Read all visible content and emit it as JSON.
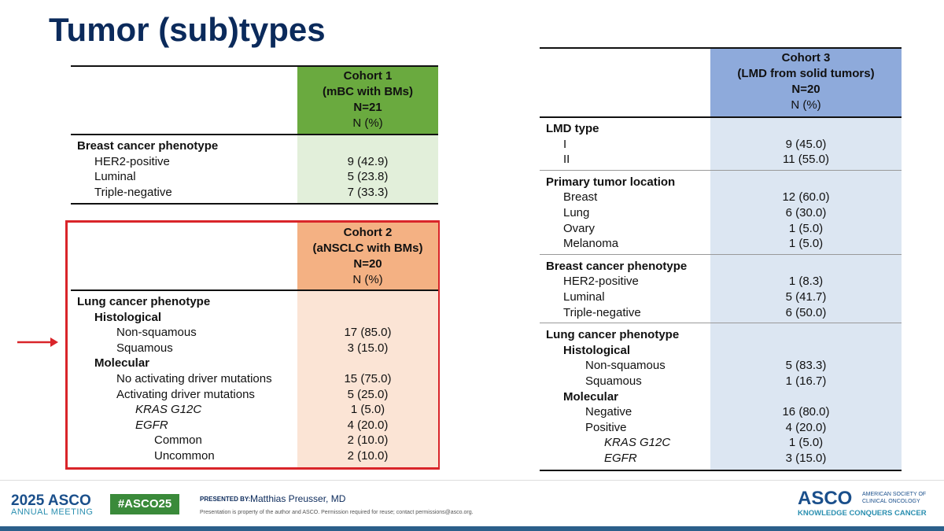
{
  "title": "Tumor (sub)types",
  "cohort1": {
    "header": [
      "Cohort 1",
      "(mBC with BMs)",
      "N=21",
      "N (%)"
    ],
    "sections": [
      {
        "label": "Breast cancer phenotype",
        "children": [
          {
            "label": "HER2-positive",
            "value": "9 (42.9)"
          },
          {
            "label": "Luminal",
            "value": "5 (23.8)"
          },
          {
            "label": "Triple-negative",
            "value": "7 (33.3)"
          }
        ]
      }
    ]
  },
  "cohort2": {
    "header": [
      "Cohort 2",
      "(aNSCLC with BMs)",
      "N=20",
      "N (%)"
    ],
    "sections": [
      {
        "label": "Lung cancer phenotype",
        "children": [
          {
            "label": "Histological",
            "children": [
              {
                "label": "Non-squamous",
                "value": "17 (85.0)"
              },
              {
                "label": "Squamous",
                "value": "3 (15.0)"
              }
            ]
          },
          {
            "label": "Molecular",
            "children": [
              {
                "label": "No activating driver mutations",
                "value": "15 (75.0)"
              },
              {
                "label": "Activating driver mutations",
                "value": "5 (25.0)",
                "children": [
                  {
                    "label": "KRAS G12C",
                    "value": "1 (5.0)"
                  },
                  {
                    "label": "EGFR",
                    "value": "4 (20.0)",
                    "children": [
                      {
                        "label": "Common",
                        "value": "2 (10.0)"
                      },
                      {
                        "label": "Uncommon",
                        "value": "2 (10.0)"
                      }
                    ]
                  }
                ]
              }
            ]
          }
        ]
      }
    ]
  },
  "cohort3": {
    "header": [
      "Cohort 3",
      "(LMD from solid tumors)",
      "N=20",
      "N (%)"
    ],
    "sections": [
      {
        "label": "LMD type",
        "children": [
          {
            "label": "I",
            "value": "9 (45.0)"
          },
          {
            "label": "II",
            "value": "11 (55.0)"
          }
        ]
      },
      {
        "label": "Primary tumor location",
        "children": [
          {
            "label": "Breast",
            "value": "12 (60.0)"
          },
          {
            "label": "Lung",
            "value": "6 (30.0)"
          },
          {
            "label": "Ovary",
            "value": "1 (5.0)"
          },
          {
            "label": "Melanoma",
            "value": "1 (5.0)"
          }
        ]
      },
      {
        "label": "Breast cancer phenotype",
        "children": [
          {
            "label": "HER2-positive",
            "value": "1 (8.3)"
          },
          {
            "label": "Luminal",
            "value": "5 (41.7)"
          },
          {
            "label": "Triple-negative",
            "value": "6 (50.0)"
          }
        ]
      },
      {
        "label": "Lung cancer phenotype",
        "children": [
          {
            "label": "Histological",
            "children": [
              {
                "label": "Non-squamous",
                "value": "5 (83.3)"
              },
              {
                "label": "Squamous",
                "value": "1 (16.7)"
              }
            ]
          },
          {
            "label": "Molecular",
            "children": [
              {
                "label": "Negative",
                "value": "16 (80.0)"
              },
              {
                "label": "Positive",
                "value": "4 (20.0)",
                "children": [
                  {
                    "label": "KRAS G12C",
                    "value": "1 (5.0)"
                  },
                  {
                    "label": "EGFR",
                    "value": "3 (15.0)"
                  }
                ]
              }
            ]
          }
        ]
      }
    ]
  },
  "footer": {
    "meeting_year": "2025 ASCO",
    "meeting": "ANNUAL MEETING",
    "hashtag": "#ASCO25",
    "presented_by": "PRESENTED BY:",
    "presenter": "Matthias Preusser, MD",
    "disclaimer": "Presentation is property of the author and ASCO. Permission required for reuse; contact permissions@asco.org.",
    "logo": "ASCO",
    "society": "AMERICAN SOCIETY OF CLINICAL ONCOLOGY",
    "tagline": "KNOWLEDGE CONQUERS CANCER"
  }
}
